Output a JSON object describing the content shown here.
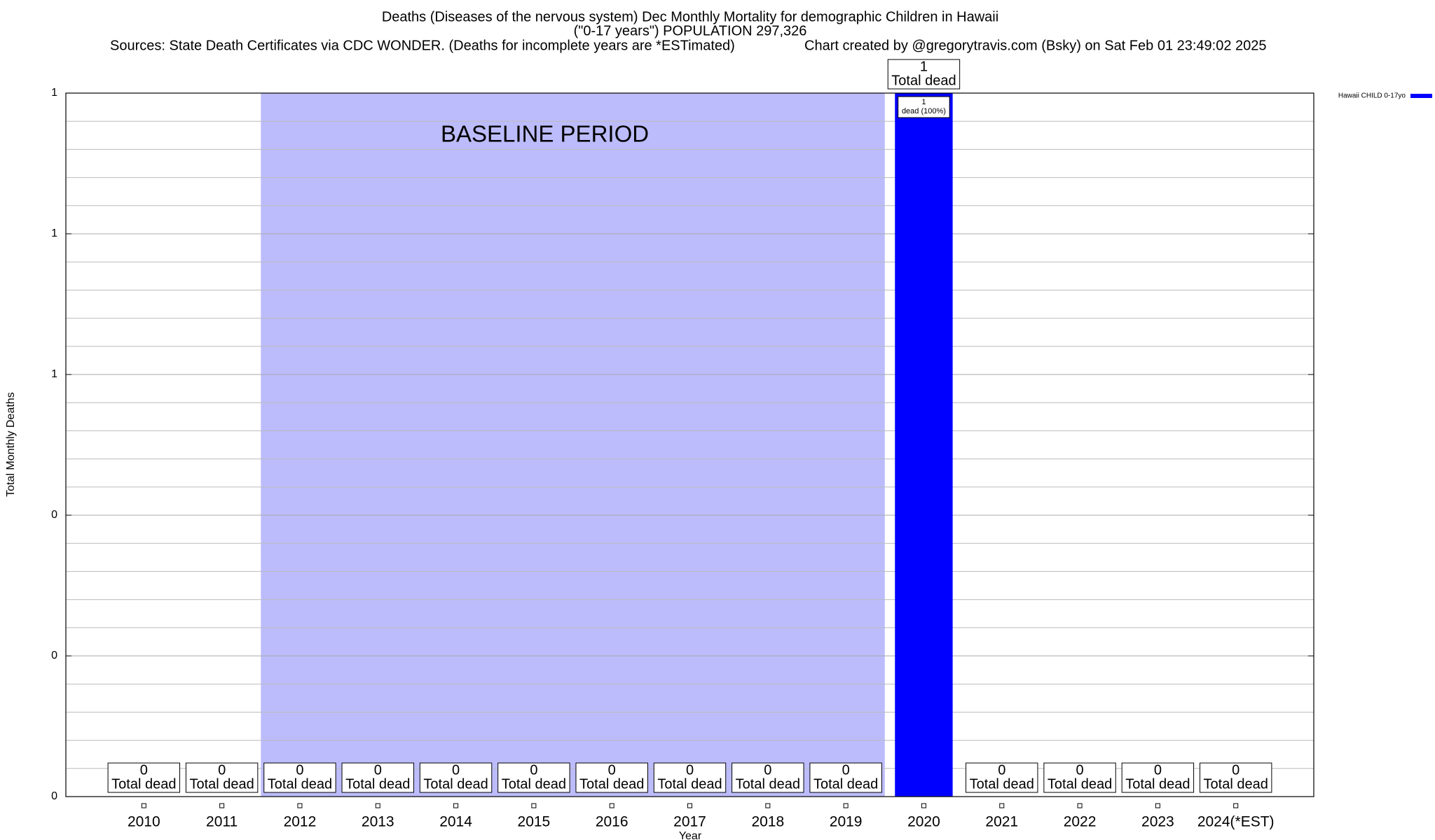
{
  "chart_data": {
    "type": "bar",
    "title": "Deaths (Diseases of the nervous system) Dec Monthly Mortality for demographic Children in Hawaii",
    "subtitle": "(\"0-17 years\") POPULATION 297,326",
    "sources": "Sources: State Death Certificates via CDC WONDER. (Deaths for incomplete years are *ESTimated)",
    "credit": "Chart created by @gregorytravis.com (Bsky) on Sat Feb 01 23:49:02 2025",
    "x_label": "Year",
    "y_label": "Total Monthly Deaths",
    "categories": [
      "2010",
      "2011",
      "2012",
      "2013",
      "2014",
      "2015",
      "2016",
      "2017",
      "2018",
      "2019",
      "2020",
      "2021",
      "2022",
      "2023",
      "2024(*EST)"
    ],
    "series": [
      {
        "name": "Hawaii CHILD 0-17yo",
        "color": "#0000ff",
        "values": [
          0,
          0,
          0,
          0,
          0,
          0,
          0,
          0,
          0,
          0,
          1,
          0,
          0,
          0,
          0
        ],
        "inner_labels": [
          null,
          null,
          null,
          null,
          null,
          null,
          null,
          null,
          null,
          null,
          "dead (100%)",
          null,
          null,
          null,
          null
        ]
      }
    ],
    "value_label_text": "Total dead",
    "baseline_period": {
      "label": "BASELINE PERIOD",
      "start": "2012",
      "end": "2019",
      "color": "#bcbcfc"
    },
    "ylim": [
      0,
      1
    ],
    "yticks": [
      {
        "value": 0,
        "label": "0"
      },
      {
        "value": 0.2,
        "label": "0"
      },
      {
        "value": 0.4,
        "label": "0"
      },
      {
        "value": 0.6,
        "label": "1"
      },
      {
        "value": 0.8,
        "label": "1"
      },
      {
        "value": 1,
        "label": "1"
      }
    ],
    "yticks_minor": [
      0.04,
      0.08,
      0.12,
      0.16,
      0.24,
      0.28,
      0.32,
      0.36,
      0.44,
      0.48,
      0.52,
      0.56,
      0.64,
      0.68,
      0.72,
      0.76,
      0.84,
      0.88,
      0.92,
      0.96
    ],
    "grid": true,
    "legend_position": "top-right"
  }
}
